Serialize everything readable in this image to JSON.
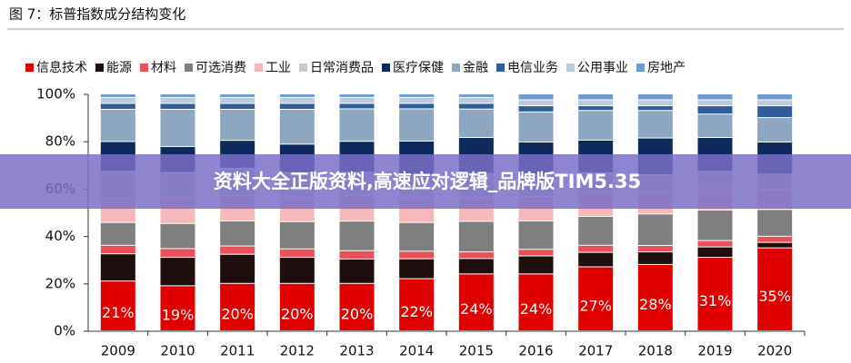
{
  "chart_data": {
    "type": "stacked_bar",
    "title": "图 7：标普指数成分结构变化",
    "categories": [
      "2009",
      "2010",
      "2011",
      "2012",
      "2013",
      "2014",
      "2015",
      "2016",
      "2017",
      "2018",
      "2019",
      "2020"
    ],
    "series": [
      {
        "name": "信息技术",
        "color": "#e00000",
        "values": [
          21,
          19,
          20,
          20,
          20,
          22,
          24,
          24,
          27,
          28,
          31,
          35
        ],
        "value_labels": [
          "21%",
          "19%",
          "20%",
          "20%",
          "20%",
          "22%",
          "24%",
          "24%",
          "27%",
          "28%",
          "31%",
          "35%"
        ]
      },
      {
        "name": "能源",
        "color": "#1f0e0e",
        "values": [
          11.5,
          12,
          12.3,
          11,
          10.3,
          8.4,
          6.5,
          7.6,
          6.1,
          5.3,
          4.4,
          2.3
        ]
      },
      {
        "name": "材料",
        "color": "#e8505a",
        "values": [
          3.6,
          3.7,
          3.5,
          3.6,
          3.5,
          3.2,
          2.8,
          2.8,
          3.0,
          2.7,
          2.7,
          2.6
        ]
      },
      {
        "name": "可选消费",
        "color": "#7f7f7f",
        "values": [
          9.6,
          10.6,
          10.6,
          11.5,
          12.5,
          12.1,
          12.9,
          12.0,
          12.2,
          13.3,
          12.9,
          11.3
        ]
      },
      {
        "name": "工业",
        "color": "#f6b8b8",
        "values": [
          10.2,
          10.9,
          10.7,
          10.1,
          10.9,
          10.4,
          10.1,
          10.3,
          10.2,
          9.2,
          9.0,
          8.5
        ]
      },
      {
        "name": "日常消费品",
        "color": "#c9c9c9",
        "values": [
          11.4,
          10.6,
          11.5,
          10.6,
          9.8,
          9.8,
          10.1,
          9.4,
          8.2,
          7.4,
          7.4,
          6.5
        ]
      },
      {
        "name": "医疗保健",
        "color": "#0c2a5c",
        "values": [
          12.6,
          11,
          11.8,
          12,
          13,
          14.2,
          15.2,
          13.6,
          13.8,
          15.5,
          14.2,
          13.5
        ]
      },
      {
        "name": "金融",
        "color": "#8ea6bf",
        "values": [
          13.6,
          15.7,
          13.1,
          14.7,
          13.7,
          13.6,
          12,
          12.7,
          12.5,
          11.6,
          9.9,
          10.3
        ]
      },
      {
        "name": "电信业务",
        "color": "#2f5d9b",
        "values": [
          2.5,
          2.5,
          2.5,
          2.5,
          2.3,
          2.3,
          2.4,
          2.6,
          2.0,
          2.0,
          3.5,
          5
        ]
      },
      {
        "name": "公用事业",
        "color": "#bccbdc",
        "values": [
          2.5,
          2.5,
          2.5,
          2.5,
          2.5,
          2.5,
          2.5,
          2.5,
          2.5,
          2.5,
          2.5,
          2.5
        ]
      },
      {
        "name": "房地产",
        "color": "#6c9bd2",
        "values": [
          1.5,
          1.5,
          1.5,
          1.5,
          1.5,
          1.5,
          1.5,
          2.5,
          2.5,
          2.5,
          2.5,
          2.5
        ]
      }
    ],
    "ylim": [
      0,
      100
    ],
    "yticks": [
      {
        "value": 0,
        "label": "0%"
      },
      {
        "value": 20,
        "label": "20%"
      },
      {
        "value": 40,
        "label": "40%"
      },
      {
        "value": 60,
        "label": "60%"
      },
      {
        "value": 80,
        "label": "80%"
      },
      {
        "value": 100,
        "label": "100%"
      }
    ]
  },
  "banner": "资料大全正版资料,高速应对逻辑_品牌版TIM5.35"
}
